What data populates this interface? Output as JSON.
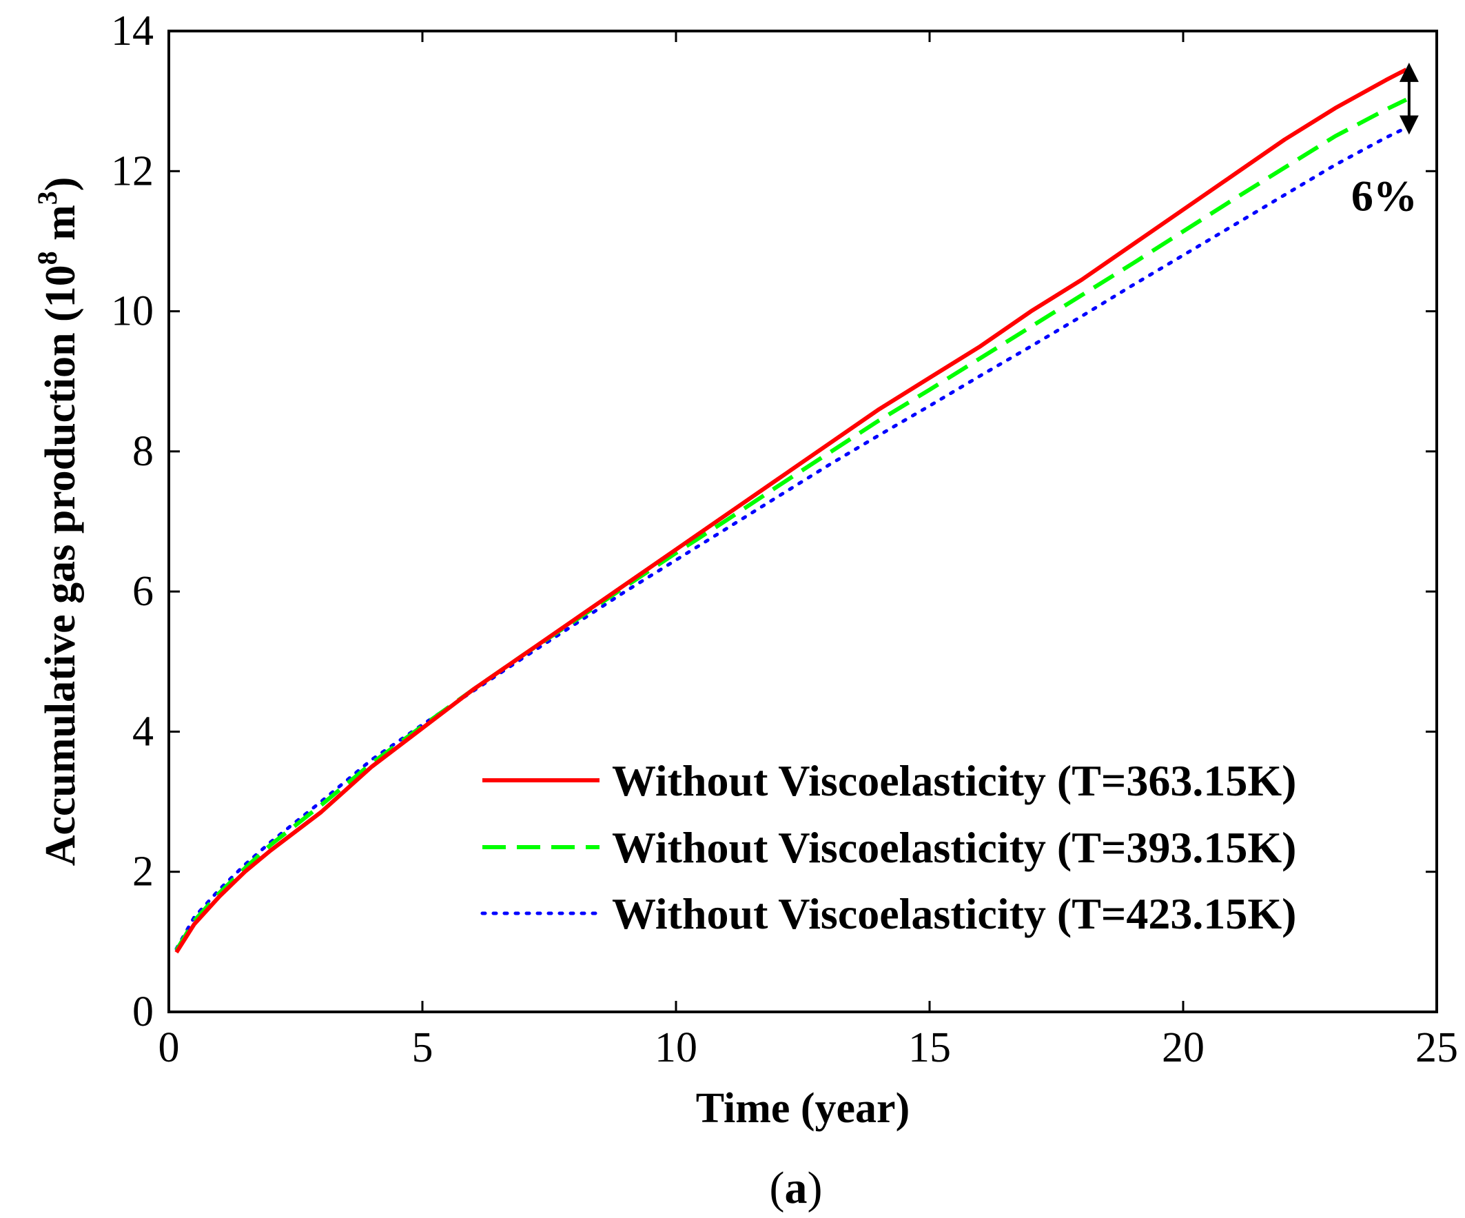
{
  "chart_data": {
    "type": "line",
    "xlabel": "Time (year)",
    "ylabel_prefix": "Accumulative gas production (10",
    "ylabel_exp8": "8",
    "ylabel_mid": " m",
    "ylabel_exp3": "3",
    "ylabel_suffix": ")",
    "xlim": [
      0,
      25
    ],
    "ylim": [
      0,
      14
    ],
    "xticks": [
      0,
      5,
      10,
      15,
      20,
      25
    ],
    "yticks": [
      0,
      2,
      4,
      6,
      8,
      10,
      12,
      14
    ],
    "xtick_labels": [
      "0",
      "5",
      "10",
      "15",
      "20",
      "25"
    ],
    "ytick_labels": [
      "0",
      "2",
      "4",
      "6",
      "8",
      "10",
      "12",
      "14"
    ],
    "grid": false,
    "legend_position": "bottom-right",
    "series": [
      {
        "name": "Without Viscoelasticity (T=363.15K)",
        "color": "#ff0000",
        "style": "solid",
        "x": [
          0.15,
          0.5,
          1,
          1.5,
          2,
          3,
          4,
          5,
          6,
          7,
          8,
          9,
          10,
          11,
          12,
          13,
          14,
          15,
          16,
          17,
          18,
          19,
          20,
          21,
          22,
          23,
          24,
          24.4
        ],
        "y": [
          0.85,
          1.25,
          1.65,
          2.0,
          2.3,
          2.85,
          3.5,
          4.05,
          4.6,
          5.1,
          5.6,
          6.1,
          6.6,
          7.1,
          7.6,
          8.1,
          8.6,
          9.05,
          9.5,
          10.0,
          10.45,
          10.95,
          11.45,
          11.95,
          12.45,
          12.9,
          13.3,
          13.45
        ]
      },
      {
        "name": "Without Viscoelasticity (T=393.15K)",
        "color": "#00ff00",
        "style": "dashed",
        "x": [
          0.15,
          0.5,
          1,
          1.5,
          2,
          3,
          4,
          5,
          6,
          7,
          8,
          9,
          10,
          11,
          12,
          13,
          14,
          15,
          16,
          17,
          18,
          19,
          20,
          21,
          22,
          23,
          24,
          24.4
        ],
        "y": [
          0.88,
          1.3,
          1.7,
          2.05,
          2.38,
          2.95,
          3.55,
          4.08,
          4.6,
          5.1,
          5.58,
          6.07,
          6.55,
          7.02,
          7.5,
          7.97,
          8.44,
          8.88,
          9.33,
          9.78,
          10.23,
          10.68,
          11.14,
          11.6,
          12.05,
          12.5,
          12.88,
          13.02
        ]
      },
      {
        "name": "Without Viscoelasticity (T=423.15K)",
        "color": "#0000ff",
        "style": "dotted",
        "x": [
          0.15,
          0.5,
          1,
          1.5,
          2,
          3,
          4,
          5,
          6,
          7,
          8,
          9,
          10,
          11,
          12,
          13,
          14,
          15,
          16,
          17,
          18,
          19,
          20,
          21,
          22,
          23,
          24,
          24.4
        ],
        "y": [
          0.9,
          1.35,
          1.75,
          2.1,
          2.42,
          3.0,
          3.6,
          4.1,
          4.58,
          5.06,
          5.53,
          6.0,
          6.45,
          6.9,
          7.35,
          7.8,
          8.23,
          8.65,
          9.08,
          9.5,
          9.93,
          10.37,
          10.8,
          11.23,
          11.66,
          12.09,
          12.48,
          12.62
        ]
      }
    ],
    "annotation": {
      "text": "6%",
      "arrow_x": 24.4,
      "arrow_y_top": 13.45,
      "arrow_y_bottom": 12.62
    },
    "caption": "(a)"
  }
}
